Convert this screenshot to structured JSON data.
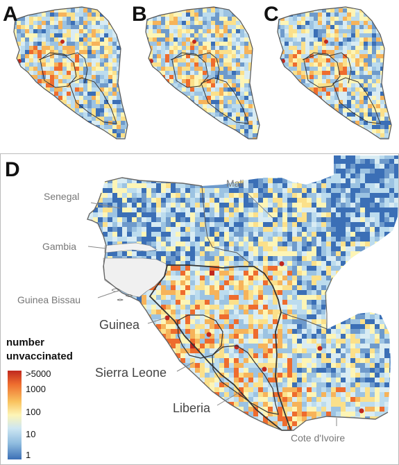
{
  "panels": {
    "a": {
      "letter": "A"
    },
    "b": {
      "letter": "B"
    },
    "c": {
      "letter": "C"
    },
    "d": {
      "letter": "D"
    }
  },
  "countries": {
    "senegal": "Senegal",
    "mali": "Mali",
    "gambia": "Gambia",
    "guinea_bissau": "Guinea Bissau",
    "guinea": "Guinea",
    "sierra_leone": "Sierra Leone",
    "liberia": "Liberia",
    "cote_divoire": "Cote d'Ivoire"
  },
  "legend": {
    "title_line1": "number",
    "title_line2": "unvaccinated",
    "ticks": [
      ">5000",
      "1000",
      "100",
      "10",
      "1"
    ],
    "colors": [
      "#c0281e",
      "#ee6c2e",
      "#f9c35f",
      "#fdf5b6",
      "#cde6f2",
      "#8fbcdf",
      "#3b6fb6"
    ]
  },
  "colors": {
    "low": "#3b6fb6",
    "mid": "#bcdcee",
    "neutral": "#fdf5b6",
    "high": "#f6a14a",
    "very_high": "#c0281e",
    "no_data": "#eeeeee"
  }
}
